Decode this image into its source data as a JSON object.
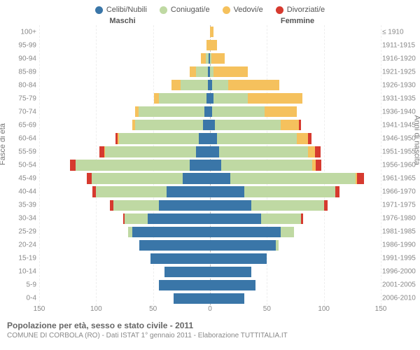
{
  "chart": {
    "type": "population-pyramid",
    "background_color": "#ffffff",
    "grid_color": "#eeeeee",
    "center_line_color": "#bbbbbb",
    "label_color": "#888888",
    "title_color": "#666666",
    "legend": [
      {
        "label": "Celibi/Nubili",
        "color": "#3a76a8"
      },
      {
        "label": "Coniugati/e",
        "color": "#bfd9a3"
      },
      {
        "label": "Vedovi/e",
        "color": "#f5c15d"
      },
      {
        "label": "Divorziati/e",
        "color": "#d63a2f"
      }
    ],
    "header_left": "Maschi",
    "header_right": "Femmine",
    "y_left_title": "Fasce di età",
    "y_right_title": "Anni di nascita",
    "x_max": 150,
    "x_ticks": [
      150,
      100,
      50,
      0,
      50,
      100,
      150
    ],
    "age_groups": [
      {
        "age": "100+",
        "birth": "≤ 1910",
        "m": [
          0,
          0,
          0,
          0
        ],
        "f": [
          0,
          0,
          3,
          0
        ]
      },
      {
        "age": "95-99",
        "birth": "1911-1915",
        "m": [
          0,
          0,
          3,
          0
        ],
        "f": [
          0,
          0,
          6,
          0
        ]
      },
      {
        "age": "90-94",
        "birth": "1916-1920",
        "m": [
          1,
          3,
          4,
          0
        ],
        "f": [
          0,
          1,
          12,
          0
        ]
      },
      {
        "age": "85-89",
        "birth": "1921-1925",
        "m": [
          2,
          10,
          6,
          0
        ],
        "f": [
          0,
          3,
          30,
          0
        ]
      },
      {
        "age": "80-84",
        "birth": "1926-1930",
        "m": [
          2,
          24,
          8,
          0
        ],
        "f": [
          2,
          14,
          45,
          0
        ]
      },
      {
        "age": "75-79",
        "birth": "1931-1935",
        "m": [
          3,
          42,
          4,
          0
        ],
        "f": [
          3,
          30,
          48,
          0
        ]
      },
      {
        "age": "70-74",
        "birth": "1936-1940",
        "m": [
          5,
          58,
          3,
          0
        ],
        "f": [
          2,
          46,
          28,
          0
        ]
      },
      {
        "age": "65-69",
        "birth": "1941-1945",
        "m": [
          6,
          60,
          2,
          0
        ],
        "f": [
          4,
          58,
          16,
          2
        ]
      },
      {
        "age": "60-64",
        "birth": "1946-1950",
        "m": [
          10,
          70,
          1,
          2
        ],
        "f": [
          6,
          70,
          10,
          3
        ]
      },
      {
        "age": "55-59",
        "birth": "1951-1955",
        "m": [
          12,
          80,
          1,
          4
        ],
        "f": [
          8,
          78,
          6,
          5
        ]
      },
      {
        "age": "50-54",
        "birth": "1956-1960",
        "m": [
          18,
          100,
          0,
          5
        ],
        "f": [
          10,
          80,
          3,
          5
        ]
      },
      {
        "age": "45-49",
        "birth": "1961-1965",
        "m": [
          24,
          80,
          0,
          4
        ],
        "f": [
          18,
          110,
          1,
          6
        ]
      },
      {
        "age": "40-44",
        "birth": "1966-1970",
        "m": [
          38,
          62,
          0,
          3
        ],
        "f": [
          30,
          80,
          0,
          4
        ]
      },
      {
        "age": "35-39",
        "birth": "1971-1975",
        "m": [
          45,
          40,
          0,
          3
        ],
        "f": [
          36,
          64,
          0,
          3
        ]
      },
      {
        "age": "30-34",
        "birth": "1976-1980",
        "m": [
          55,
          20,
          0,
          1
        ],
        "f": [
          45,
          35,
          0,
          2
        ]
      },
      {
        "age": "25-29",
        "birth": "1981-1985",
        "m": [
          68,
          4,
          0,
          0
        ],
        "f": [
          62,
          12,
          0,
          0
        ]
      },
      {
        "age": "20-24",
        "birth": "1986-1990",
        "m": [
          62,
          0,
          0,
          0
        ],
        "f": [
          58,
          2,
          0,
          0
        ]
      },
      {
        "age": "15-19",
        "birth": "1991-1995",
        "m": [
          52,
          0,
          0,
          0
        ],
        "f": [
          50,
          0,
          0,
          0
        ]
      },
      {
        "age": "10-14",
        "birth": "1996-2000",
        "m": [
          40,
          0,
          0,
          0
        ],
        "f": [
          36,
          0,
          0,
          0
        ]
      },
      {
        "age": "5-9",
        "birth": "2001-2005",
        "m": [
          45,
          0,
          0,
          0
        ],
        "f": [
          40,
          0,
          0,
          0
        ]
      },
      {
        "age": "0-4",
        "birth": "2006-2010",
        "m": [
          32,
          0,
          0,
          0
        ],
        "f": [
          30,
          0,
          0,
          0
        ]
      }
    ],
    "footer_title": "Popolazione per età, sesso e stato civile - 2011",
    "footer_sub": "COMUNE DI CORBOLA (RO) - Dati ISTAT 1° gennaio 2011 - Elaborazione TUTTITALIA.IT"
  }
}
